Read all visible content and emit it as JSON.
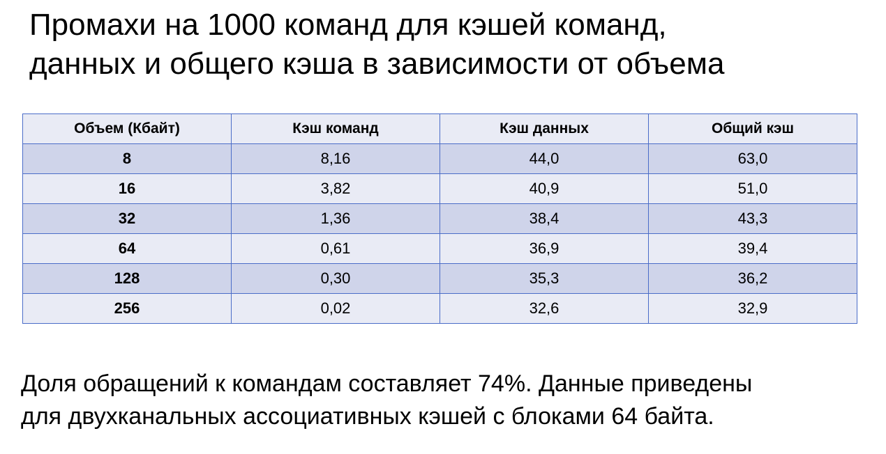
{
  "title": {
    "line1": "Промахи на 1000 команд для кэшей команд,",
    "line2": "данных и общего кэша в зависимости от объема"
  },
  "table": {
    "headers": [
      "Объем (Кбайт)",
      "Кэш команд",
      "Кэш данных",
      "Общий кэш"
    ],
    "rows": [
      [
        "8",
        "8,16",
        "44,0",
        "63,0"
      ],
      [
        "16",
        "3,82",
        "40,9",
        "51,0"
      ],
      [
        "32",
        "1,36",
        "38,4",
        "43,3"
      ],
      [
        "64",
        "0,61",
        "36,9",
        "39,4"
      ],
      [
        "128",
        "0,30",
        "35,3",
        "36,2"
      ],
      [
        "256",
        "0,02",
        "32,6",
        "32,9"
      ]
    ]
  },
  "note": {
    "line1": "Доля обращений к командам составляет 74%. Данные приведены",
    "line2": "для двухканальных ассоциативных кэшей с блоками 64 байта."
  },
  "colors": {
    "border": "#4a6cc8",
    "row_dark": "#cfd4ea",
    "row_light": "#e9ebf5"
  }
}
